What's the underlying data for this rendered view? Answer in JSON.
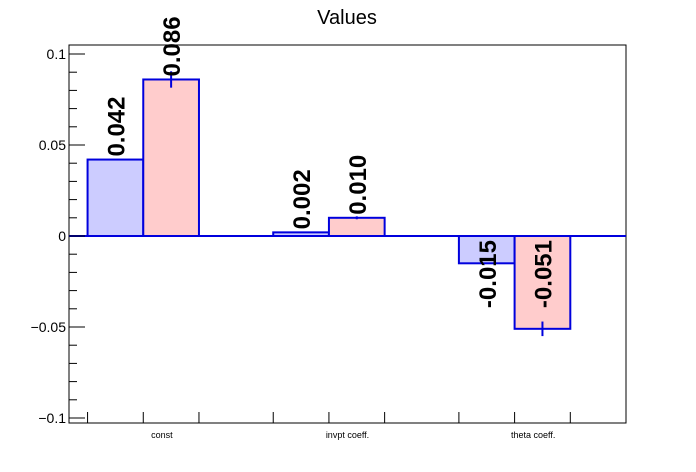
{
  "chart_data": {
    "type": "bar",
    "title": "Values",
    "xlabel": "",
    "ylabel": "",
    "categories": [
      "const",
      "invpt coeff.",
      "theta coeff."
    ],
    "series": [
      {
        "values": [
          0.042,
          0.002,
          -0.015
        ],
        "labels": [
          "0.042",
          "0.002",
          "-0.015"
        ],
        "errors": [
          0,
          0,
          0
        ],
        "fill": "#ccccff",
        "stroke": "#0000dd"
      },
      {
        "values": [
          0.086,
          0.01,
          -0.051
        ],
        "labels": [
          "0.086",
          "0.010",
          "-0.051"
        ],
        "errors": [
          0.0045,
          0.0008,
          0.004
        ],
        "fill": "#ffcccc",
        "stroke": "#0000dd"
      }
    ],
    "ylim": [
      -0.1,
      0.1
    ],
    "yticks": [
      -0.1,
      -0.05,
      0,
      0.05,
      0.1
    ],
    "ytick_labels": [
      "−0.1",
      "−0.05",
      "0",
      "0.05",
      "0.1"
    ],
    "zero_line_color": "#0000dd",
    "grid": false,
    "legend": "none"
  }
}
